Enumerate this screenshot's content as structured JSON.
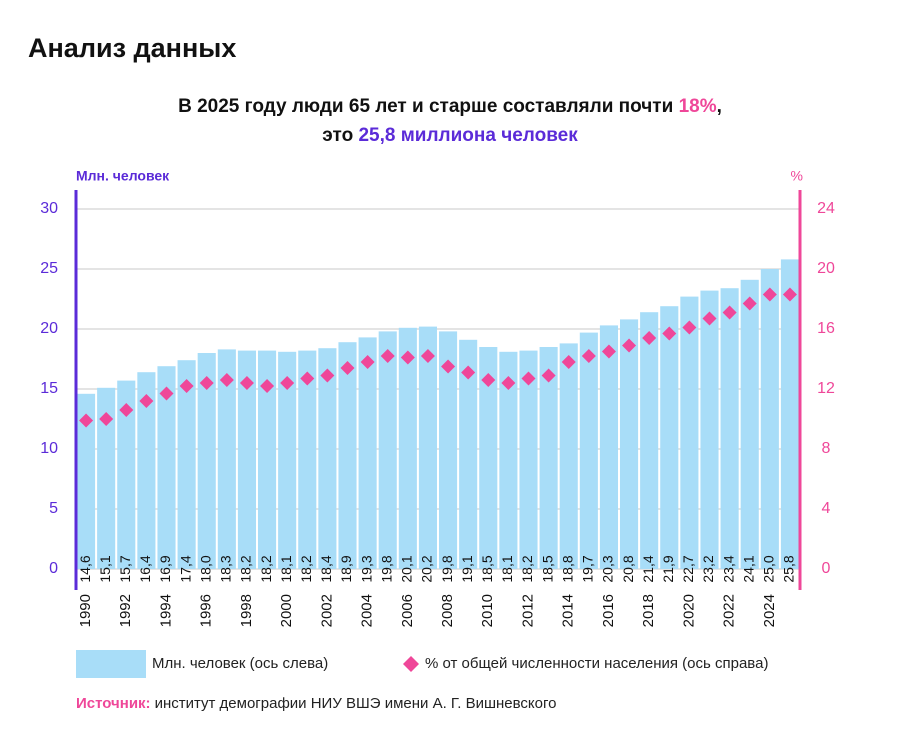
{
  "header": "Анализ данных",
  "chart_data": {
    "type": "bar",
    "title_parts": [
      "В 2025 году люди 65 лет и старше составляли почти ",
      "18%",
      ",",
      "это ",
      "25,8 миллиона человек"
    ],
    "ylabel": "Млн. человек",
    "y2label": "%",
    "categories": [
      "1990",
      null,
      "1992",
      null,
      "1994",
      null,
      "1996",
      null,
      "1998",
      null,
      "2000",
      null,
      "2002",
      null,
      "2004",
      null,
      "2006",
      null,
      "2008",
      null,
      "2010",
      null,
      "2012",
      null,
      "2014",
      null,
      "2016",
      null,
      "2018",
      null,
      "2020",
      null,
      "2022",
      null,
      "2024",
      null
    ],
    "series": [
      {
        "name": "Млн. человек (ось слева)",
        "type": "bar",
        "color": "#a8ddf8",
        "values": [
          14.6,
          15.1,
          15.7,
          16.4,
          16.9,
          17.4,
          18.0,
          18.3,
          18.2,
          18.2,
          18.1,
          18.2,
          18.4,
          18.9,
          19.3,
          19.8,
          20.1,
          20.2,
          19.8,
          19.1,
          18.5,
          18.1,
          18.2,
          18.5,
          18.8,
          19.7,
          20.3,
          20.8,
          21.4,
          21.9,
          22.7,
          23.2,
          23.4,
          24.1,
          25.0,
          25.8
        ],
        "value_labels": [
          "14,6",
          "15,1",
          "15,7",
          "16,4",
          "16,9",
          "17,4",
          "18,0",
          "18,3",
          "18,2",
          "18,2",
          "18,1",
          "18,2",
          "18,4",
          "18,9",
          "19,3",
          "19,8",
          "20,1",
          "20,2",
          "19,8",
          "19,1",
          "18,5",
          "18,1",
          "18,2",
          "18,5",
          "18,8",
          "19,7",
          "20,3",
          "20,8",
          "21,4",
          "21,9",
          "22,7",
          "23,2",
          "23,4",
          "24,1",
          "25,0",
          "25,8"
        ]
      },
      {
        "name": "% от общей численности населения (ось справа)",
        "type": "scatter",
        "color": "#ef4799",
        "axis": "y2",
        "values": [
          9.9,
          10.0,
          10.6,
          11.2,
          11.7,
          12.2,
          12.4,
          12.6,
          12.4,
          12.2,
          12.4,
          12.7,
          12.9,
          13.4,
          13.8,
          14.2,
          14.1,
          14.2,
          13.5,
          13.1,
          12.6,
          12.4,
          12.7,
          12.9,
          13.8,
          14.2,
          14.5,
          14.9,
          15.4,
          15.7,
          16.1,
          16.7,
          17.1,
          17.7,
          18.3,
          18.3
        ]
      }
    ],
    "ylim": [
      0,
      30
    ],
    "yticks": [
      0,
      5,
      10,
      15,
      20,
      25,
      30
    ],
    "y2lim": [
      0,
      24
    ],
    "y2ticks": [
      0,
      4,
      8,
      12,
      16,
      20,
      24
    ],
    "grid": true,
    "source_label": "Источник:",
    "source": "институт демографии НИУ ВШЭ имени А. Г. Вишневского"
  }
}
